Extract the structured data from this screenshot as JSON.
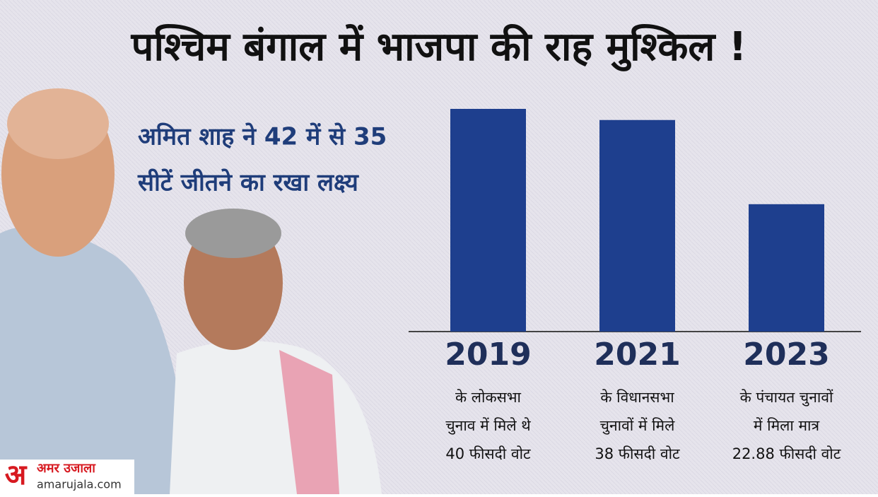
{
  "chart_data": {
    "type": "bar",
    "title": "पश्चिम बंगाल में भाजपा की राह मुश्किल !",
    "subtitle": [
      "अमित शाह ने 42 में से 35",
      "सीटें जीतने का रखा लक्ष्य"
    ],
    "categories": [
      "2019",
      "2021",
      "2023"
    ],
    "values": [
      40,
      38,
      22.88
    ],
    "value_labels": [
      [
        "के लोकसभा",
        "चुनाव में मिले थे",
        "40 फीसदी वोट"
      ],
      [
        "के विधानसभा",
        "चुनावों में मिले",
        "38 फीसदी वोट"
      ],
      [
        "के पंचायत चुनावों",
        "में मिला मात्र",
        "22.88 फीसदी वोट"
      ]
    ],
    "color": "#1e3f8e"
  },
  "brand": {
    "logo": "अ",
    "name": "अमर उजाला",
    "url": "amarujala.com"
  }
}
